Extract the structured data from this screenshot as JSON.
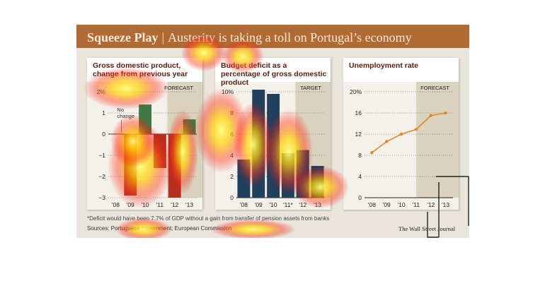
{
  "figure": {
    "title": "Squeeze Play",
    "separator": "|",
    "subtitle": "Austerity is taking a toll on Portugal’s economy",
    "footnote": "*Deficit would have been 7.7% of GDP without a gain from transfer of pension assets from banks",
    "sources": "Sources: Portuguese government; European Commission",
    "publisher": "The Wall Street Journal"
  },
  "colors": {
    "title_bar": "#b26a35",
    "gdp_negative": "#b53020",
    "gdp_positive": "#3f7a44",
    "deficit_bar": "#21405e",
    "unemployment_line": "#e0872a",
    "forecast_shade": "#d9d2bd"
  },
  "heatmap_overlay": true,
  "chart_data": [
    {
      "type": "bar",
      "title": "Gross domestic product, change from previous year",
      "categories": [
        "'08",
        "'09",
        "'10",
        "'11",
        "'12",
        "'13"
      ],
      "values": [
        0.0,
        -2.9,
        1.4,
        -1.6,
        -3.0,
        0.7
      ],
      "ylim": [
        -3,
        2
      ],
      "yticks": [
        "2%",
        "1",
        "0",
        "−1",
        "−2",
        "−3"
      ],
      "shaded_label": "FORECAST",
      "shaded_from": "'12",
      "annotation": "No change",
      "grid": true
    },
    {
      "type": "bar",
      "title": "Budget deficit as a percentage of gross domestic product",
      "categories": [
        "'08",
        "'09",
        "'10",
        "'11*",
        "'12",
        "'13"
      ],
      "values": [
        3.6,
        10.2,
        9.8,
        4.2,
        4.5,
        3.0
      ],
      "ylim": [
        0,
        10
      ],
      "yticks": [
        "10%",
        "8",
        "6",
        "4",
        "2",
        "0"
      ],
      "shaded_label": "TARGET",
      "shaded_from": "'12",
      "grid": true
    },
    {
      "type": "line",
      "title": "Unemployment rate",
      "x": [
        "'08",
        "'09",
        "'10",
        "'11",
        "'12",
        "'13"
      ],
      "values": [
        8.5,
        10.6,
        12.0,
        12.9,
        15.5,
        16.0
      ],
      "ylim": [
        0,
        20
      ],
      "yticks": [
        "20%",
        "16",
        "12",
        "8",
        "4",
        "0"
      ],
      "shaded_label": "FORECAST",
      "shaded_from": "'12",
      "grid": true
    }
  ]
}
